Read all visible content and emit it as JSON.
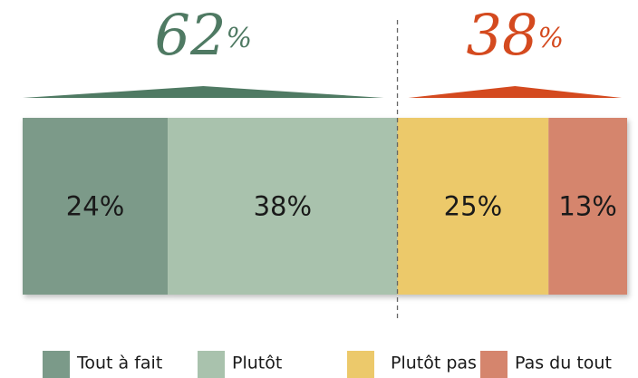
{
  "chart_data": {
    "type": "stacked-bar",
    "xlim": [
      0,
      100
    ],
    "series": [
      {
        "name": "Tout à fait",
        "color": "#7b9a89",
        "values": [
          24
        ],
        "value_labels": [
          "24%"
        ]
      },
      {
        "name": "Plutôt",
        "color": "#a9c2ad",
        "values": [
          38
        ],
        "value_labels": [
          "38%"
        ]
      },
      {
        "name": "Plutôt pas",
        "color": "#ecc96b",
        "values": [
          25
        ],
        "value_labels": [
          "25%"
        ]
      },
      {
        "name": "Pas du tout",
        "color": "#d5856d",
        "values": [
          13
        ],
        "value_labels": [
          "13%"
        ]
      }
    ],
    "groups": [
      {
        "value": 62,
        "unit": "%",
        "color": "#4f7a63",
        "members": [
          0,
          1
        ]
      },
      {
        "value": 38,
        "unit": "%",
        "color": "#d44a1f",
        "members": [
          2,
          3
        ]
      }
    ]
  }
}
